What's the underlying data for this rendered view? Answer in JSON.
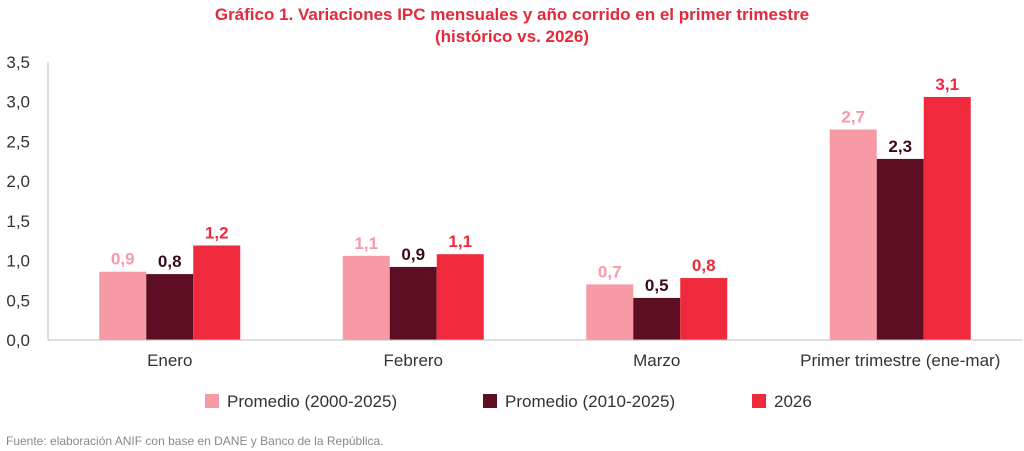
{
  "chart_data": {
    "type": "bar",
    "title_line1": "Gráfico 1. Variaciones IPC mensuales y año corrido en el primer trimestre",
    "title_line2": "(histórico vs. 2026)",
    "categories": [
      "Enero",
      "Febrero",
      "Marzo",
      "Primer trimestre (ene-mar)"
    ],
    "series": [
      {
        "name": "Promedio (2000-2025)",
        "values": [
          0.86,
          1.06,
          0.7,
          2.65
        ],
        "labels": [
          "0,9",
          "1,1",
          "0,7",
          "2,7"
        ],
        "color": "#F79AA6"
      },
      {
        "name": "Promedio (2010-2025)",
        "values": [
          0.83,
          0.92,
          0.53,
          2.28
        ],
        "labels": [
          "0,8",
          "0,9",
          "0,5",
          "2,3"
        ],
        "color": "#5E0E23"
      },
      {
        "name": "2026",
        "values": [
          1.19,
          1.08,
          0.78,
          3.06
        ],
        "labels": [
          "1,2",
          "1,1",
          "0,8",
          "3,1"
        ],
        "color": "#EE2A3C"
      }
    ],
    "yticks": [
      "0,0",
      "0,5",
      "1,0",
      "1,5",
      "2,0",
      "2,5",
      "3,0",
      "3,5"
    ],
    "ylim": [
      0,
      3.5
    ],
    "grid": false,
    "legend_position": "bottom",
    "title_color": "#E5283A",
    "axis_color": "#BFBFBF"
  },
  "source": "Fuente: elaboración ANIF con base en DANE y Banco de la República."
}
